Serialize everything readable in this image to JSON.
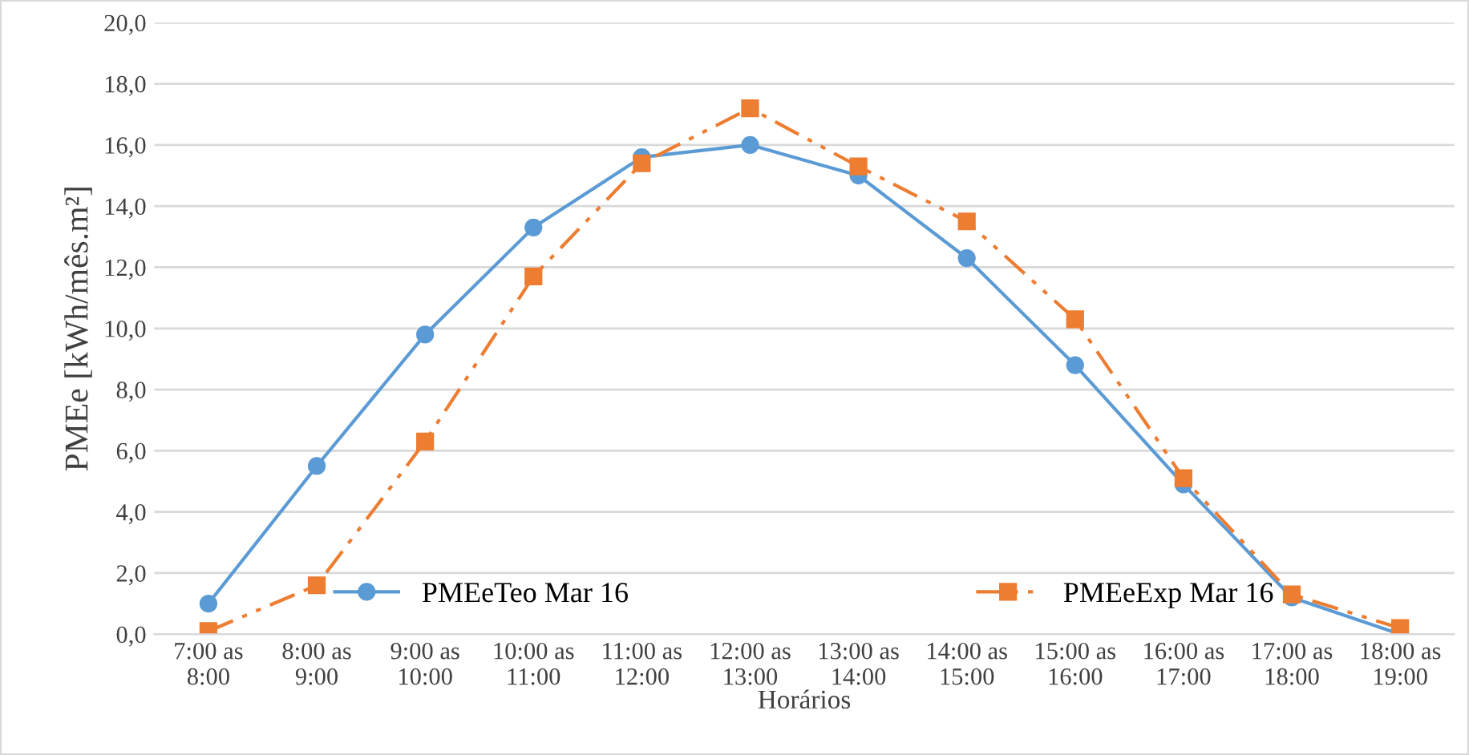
{
  "chart_data": {
    "type": "line",
    "xlabel": "Horários",
    "ylabel": "PMEe [kWh/mês.m²]",
    "categories": [
      "7:00 as\n8:00",
      "8:00 as\n9:00",
      "9:00 as\n10:00",
      "10:00 as\n11:00",
      "11:00 as\n12:00",
      "12:00 as\n13:00",
      "13:00 as\n14:00",
      "14:00 as\n15:00",
      "15:00 as\n16:00",
      "16:00 as\n17:00",
      "17:00 as\n18:00",
      "18:00 as\n19:00"
    ],
    "series": [
      {
        "name": "PMEeTeo Mar 16",
        "color": "#5b9bd5",
        "marker": "circle",
        "line_style": "solid",
        "values": [
          1.0,
          5.5,
          9.8,
          13.3,
          15.6,
          16.0,
          15.0,
          12.3,
          8.8,
          4.9,
          1.2,
          0.0
        ]
      },
      {
        "name": "PMEeExp Mar 16",
        "color": "#ed7d31",
        "marker": "square",
        "line_style": "dashdotdot",
        "values": [
          0.1,
          1.6,
          6.3,
          11.7,
          15.4,
          17.2,
          15.3,
          13.5,
          10.3,
          5.1,
          1.3,
          0.2
        ]
      }
    ],
    "ylim": [
      0,
      20
    ],
    "yticks": [
      {
        "value": 0,
        "label": "0,0"
      },
      {
        "value": 2,
        "label": "2,0"
      },
      {
        "value": 4,
        "label": "4,0"
      },
      {
        "value": 6,
        "label": "6,0"
      },
      {
        "value": 8,
        "label": "8,0"
      },
      {
        "value": 10,
        "label": "10,0"
      },
      {
        "value": 12,
        "label": "12,0"
      },
      {
        "value": 14,
        "label": "14,0"
      },
      {
        "value": 16,
        "label": "16,0"
      },
      {
        "value": 18,
        "label": "18,0"
      },
      {
        "value": 20,
        "label": "20,0"
      }
    ],
    "grid": "y",
    "legend": "bottom"
  }
}
